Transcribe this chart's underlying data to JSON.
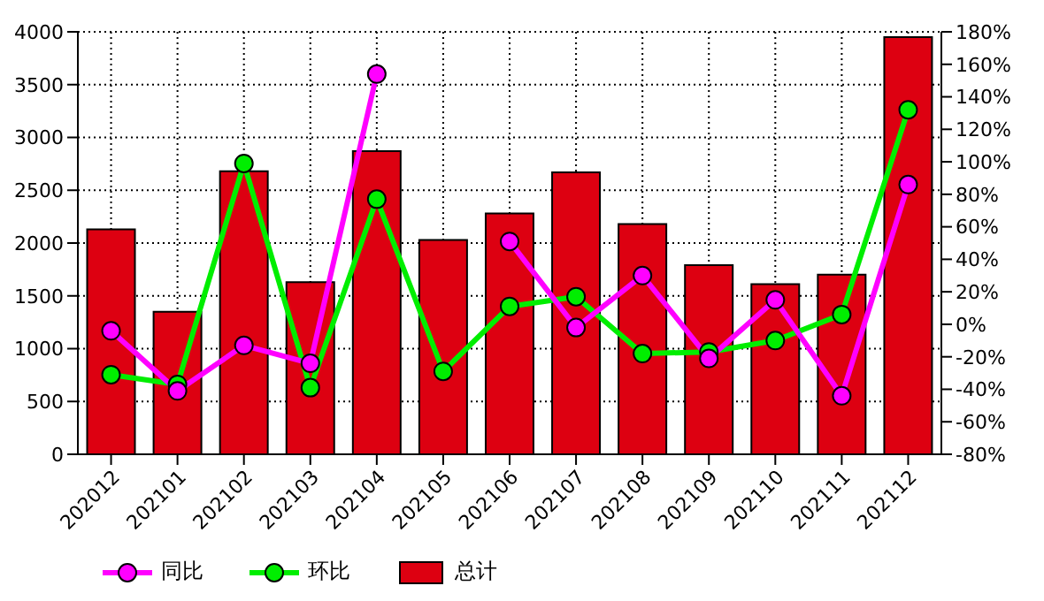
{
  "chart_data": {
    "type": "bar",
    "categories": [
      "202012",
      "202101",
      "202102",
      "202103",
      "202104",
      "202105",
      "202106",
      "202107",
      "202108",
      "202109",
      "202110",
      "202111",
      "202112"
    ],
    "series": [
      {
        "name": "同比",
        "type": "line",
        "axis": "y2",
        "color": "#ff00ff",
        "values": [
          -4,
          -41,
          -13,
          -24,
          154,
          null,
          51,
          -2,
          30,
          -21,
          15,
          -44,
          86
        ]
      },
      {
        "name": "环比",
        "type": "line",
        "axis": "y2",
        "color": "#00ee00",
        "values": [
          -31,
          -37,
          99,
          -39,
          77,
          -29,
          11,
          17,
          -18,
          -17,
          -10,
          6,
          132
        ]
      },
      {
        "name": "总计",
        "color": "#dd0011",
        "values": [
          2130,
          1350,
          2680,
          1630,
          2870,
          2030,
          2280,
          2670,
          2180,
          1790,
          1610,
          1700,
          3950
        ]
      }
    ],
    "ylim": [
      0,
      4000
    ],
    "yticks": [
      0,
      500,
      1000,
      1500,
      2000,
      2500,
      3000,
      3500,
      4000
    ],
    "y2lim": [
      -80,
      180
    ],
    "y2ticks": [
      {
        "value": -80,
        "label": "-80%"
      },
      {
        "value": -60,
        "label": "-60%"
      },
      {
        "value": -40,
        "label": "-40%"
      },
      {
        "value": -20,
        "label": "-20%"
      },
      {
        "value": 0,
        "label": "0%"
      },
      {
        "value": 20,
        "label": "20%"
      },
      {
        "value": 40,
        "label": "40%"
      },
      {
        "value": 60,
        "label": "60%"
      },
      {
        "value": 80,
        "label": "80%"
      },
      {
        "value": 100,
        "label": "100%"
      },
      {
        "value": 120,
        "label": "120%"
      },
      {
        "value": 140,
        "label": "140%"
      },
      {
        "value": 160,
        "label": "160%"
      },
      {
        "value": 180,
        "label": "180%"
      }
    ],
    "grid": true,
    "legend": "bottom left",
    "marker": "circle",
    "line_style": "solid"
  }
}
